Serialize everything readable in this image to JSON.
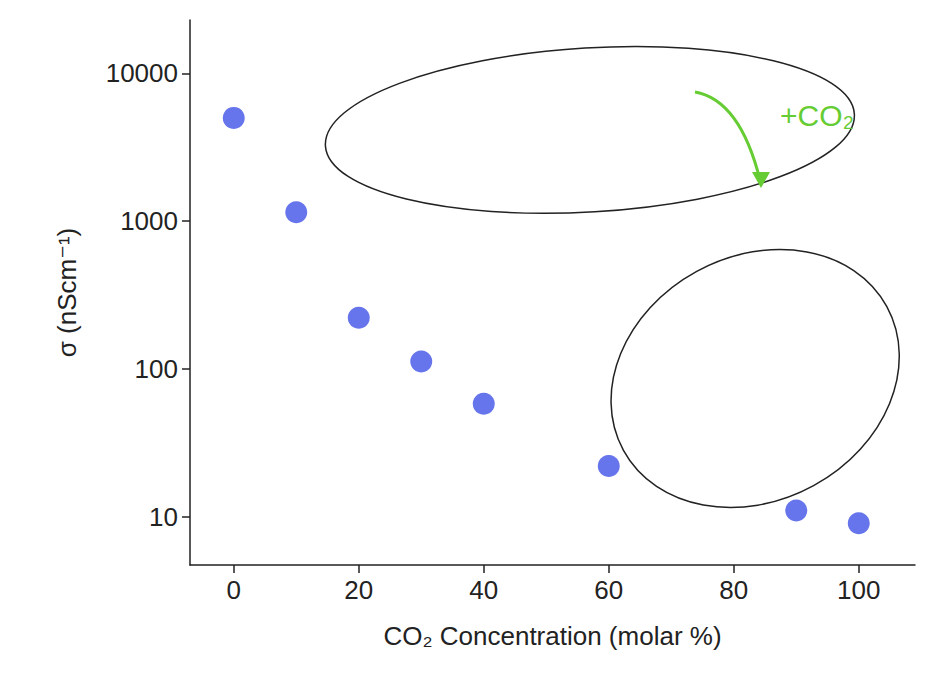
{
  "chart_data": {
    "type": "scatter",
    "x": [
      0,
      10,
      20,
      30,
      40,
      60,
      90,
      100
    ],
    "values": [
      5000,
      1150,
      222,
      112,
      58,
      22,
      11,
      9
    ],
    "color": "#4052e6",
    "xlabel": "CO₂ Concentration (molar %)",
    "ylabel": "σ (nScm⁻¹)",
    "xlim": [
      -7,
      109
    ],
    "xticks": [
      0,
      20,
      40,
      60,
      80,
      100
    ],
    "ylim": [
      4.7,
      23000
    ],
    "yticks": [
      10,
      100,
      1000,
      10000
    ],
    "log": "y",
    "grid": false,
    "marker": "circle",
    "annotations": [
      "+CO₂"
    ]
  }
}
